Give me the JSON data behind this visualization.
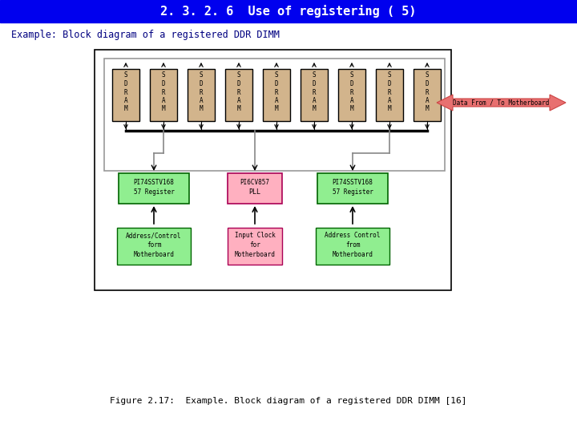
{
  "title": "2. 3. 2. 6  Use of registering ( 5)",
  "title_bg": "#0000EE",
  "title_fg": "#FFFFFF",
  "subtitle": "Example: Block diagram of a registered DDR DIMM",
  "subtitle_color": "#000080",
  "caption": "Figure 2.17:  Example. Block diagram of a registered DDR DIMM [16]",
  "bg_color": "#FFFFFF",
  "sram_color": "#D2B48C",
  "sram_border": "#000000",
  "register_fill": "#90EE90",
  "register_border": "#006400",
  "pll_fill": "#FFB0C0",
  "pll_border": "#AA0055",
  "input_box_fill": "#90EE90",
  "input_box_border": "#006400",
  "pll_input_fill": "#FFB0C0",
  "pll_input_border": "#AA0055",
  "arrow_fill": "#E87070",
  "outer_box_color": "#000000",
  "inner_box_color": "#999999",
  "bus_color": "#000000",
  "wire_color": "#888888"
}
